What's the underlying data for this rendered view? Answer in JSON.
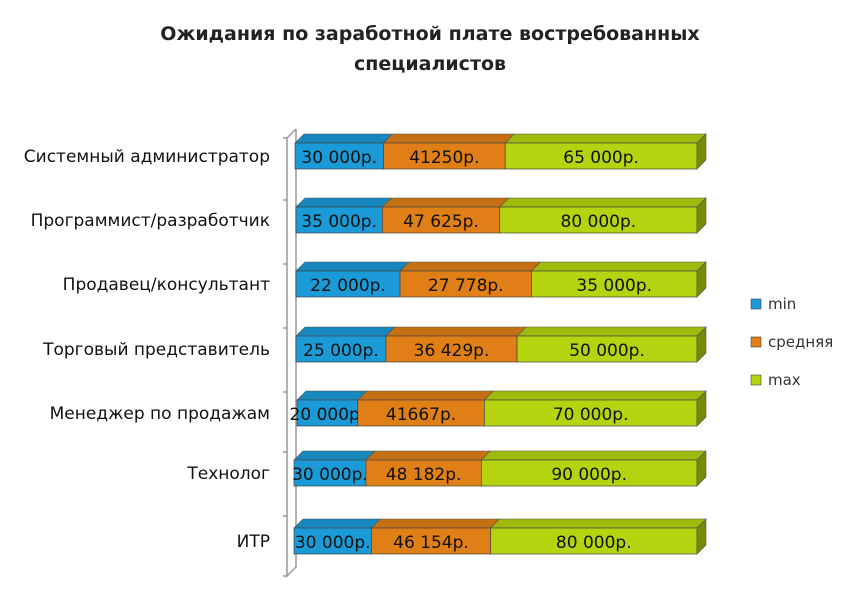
{
  "chart_data": {
    "type": "bar",
    "orientation": "horizontal",
    "stacked": true,
    "three_d": true,
    "title_lines": [
      "Ожидания  по заработной плате  востребованных",
      "специалистов"
    ],
    "categories": [
      "Системный администратор",
      "Программист/разработчик",
      "Продавец/консультант",
      "Торговый представитель",
      "Менеджер по продажам",
      "Технолог",
      "ИТР"
    ],
    "series": [
      {
        "name": "min",
        "color": "#1a9ad7",
        "values": [
          30000,
          35000,
          22000,
          25000,
          20000,
          30000,
          30000
        ],
        "labels": [
          "30 000р.",
          "35 000р.",
          "22 000р.",
          "25 000р.",
          "20 000р.",
          "30 000р.",
          "30 000р."
        ]
      },
      {
        "name": "средняя",
        "color": "#e07f16",
        "values": [
          41250,
          47625,
          27778,
          36429,
          41667,
          48182,
          46154
        ],
        "labels": [
          "41250р.",
          "47 625р.",
          "27 778р.",
          "36 429р.",
          "41667р.",
          "48 182р.",
          "46 154р."
        ]
      },
      {
        "name": "max",
        "color": "#b5d30e",
        "values": [
          65000,
          80000,
          35000,
          50000,
          70000,
          90000,
          80000
        ],
        "labels": [
          "65 000р.",
          "80 000р.",
          "35 000р.",
          "50 000р.",
          "70 000р.",
          "90 000р.",
          "80 000р."
        ]
      }
    ],
    "legend_position": "right",
    "grid": false
  }
}
